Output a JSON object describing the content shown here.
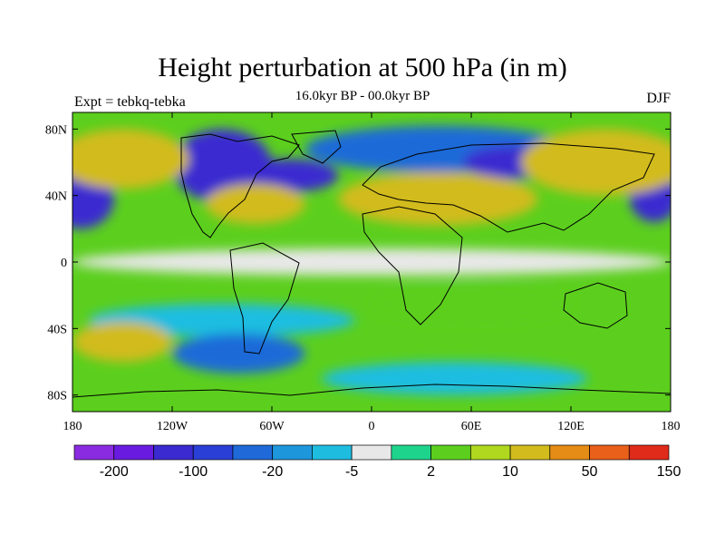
{
  "header": {
    "title": "Height perturbation at 500 hPa (in m)",
    "subtitle": "16.0kyr BP - 00.0kyr BP",
    "left": "Expt = tebkq-tebka",
    "right": "DJF"
  },
  "axes": {
    "lat_ticks": [
      {
        "label": "80N",
        "value": 80
      },
      {
        "label": "40N",
        "value": 40
      },
      {
        "label": "0",
        "value": 0
      },
      {
        "label": "40S",
        "value": -40
      },
      {
        "label": "80S",
        "value": -80
      }
    ],
    "lon_ticks": [
      {
        "label": "180",
        "value": -180
      },
      {
        "label": "120W",
        "value": -120
      },
      {
        "label": "60W",
        "value": -60
      },
      {
        "label": "0",
        "value": 0
      },
      {
        "label": "60E",
        "value": 60
      },
      {
        "label": "120E",
        "value": 120
      },
      {
        "label": "180",
        "value": 180
      }
    ],
    "lon_range": [
      -180,
      180
    ],
    "lat_range": [
      -90,
      90
    ]
  },
  "colorbar": {
    "colors": [
      "#8a2be2",
      "#6a1be0",
      "#3a2ad0",
      "#2a3fd6",
      "#1f6ad8",
      "#1e96dc",
      "#1ebde0",
      "#e8e8e8",
      "#1ed48c",
      "#5ccf1e",
      "#b0d81e",
      "#d2bb1c",
      "#e48c16",
      "#e8601a",
      "#e02a1a"
    ],
    "labels": [
      "-200",
      "-100",
      "-20",
      "-5",
      "2",
      "10",
      "50",
      "150"
    ]
  },
  "chart_data": {
    "type": "heatmap",
    "title": "Height perturbation at 500 hPa (in m)",
    "subtitle": "16.0kyr BP - 00.0kyr BP",
    "x_range": [
      -180,
      180
    ],
    "y_range": [
      -90,
      90
    ],
    "features": [
      {
        "lon": 40,
        "lat": 68,
        "rx": 80,
        "ry": 14,
        "level": -20
      },
      {
        "lon": 85,
        "lat": 60,
        "rx": 30,
        "ry": 10,
        "level": -100
      },
      {
        "lon": -90,
        "lat": 58,
        "rx": 30,
        "ry": 22,
        "level": -100
      },
      {
        "lon": -50,
        "lat": 52,
        "rx": 30,
        "ry": 10,
        "level": -100
      },
      {
        "lon": -175,
        "lat": 38,
        "rx": 20,
        "ry": 18,
        "level": -100
      },
      {
        "lon": 170,
        "lat": 40,
        "rx": 15,
        "ry": 16,
        "level": -100
      },
      {
        "lon": -70,
        "lat": 35,
        "rx": 30,
        "ry": 12,
        "level": 50
      },
      {
        "lon": -150,
        "lat": 62,
        "rx": 40,
        "ry": 18,
        "level": 50
      },
      {
        "lon": 40,
        "lat": 38,
        "rx": 60,
        "ry": 16,
        "level": 50
      },
      {
        "lon": 140,
        "lat": 60,
        "rx": 50,
        "ry": 20,
        "level": 50
      },
      {
        "lon": 0,
        "lat": 0,
        "rx": 180,
        "ry": 8,
        "level": 2
      },
      {
        "lon": -90,
        "lat": -35,
        "rx": 80,
        "ry": 10,
        "level": -5
      },
      {
        "lon": 60,
        "lat": -25,
        "rx": 60,
        "ry": 12,
        "level": 10
      },
      {
        "lon": -150,
        "lat": -48,
        "rx": 30,
        "ry": 12,
        "level": 50
      },
      {
        "lon": -80,
        "lat": -55,
        "rx": 40,
        "ry": 12,
        "level": -20
      },
      {
        "lon": 50,
        "lat": -70,
        "rx": 80,
        "ry": 10,
        "level": -5
      }
    ]
  }
}
